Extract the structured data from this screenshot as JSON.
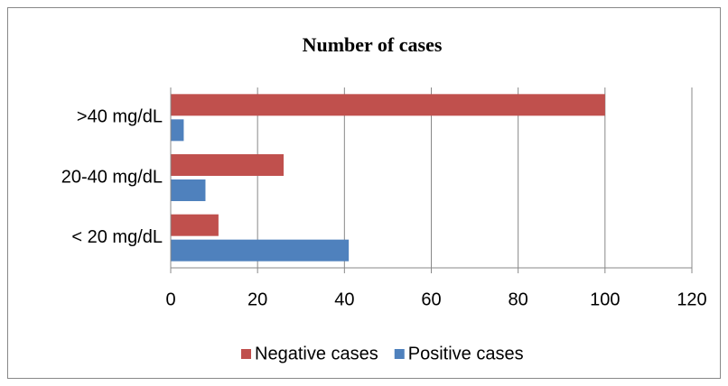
{
  "chart_data": {
    "type": "bar",
    "orientation": "horizontal",
    "title": "Number of cases",
    "categories": [
      ">40 mg/dL",
      "20-40 mg/dL",
      "< 20 mg/dL"
    ],
    "series": [
      {
        "name": "Negative cases",
        "color": "#c0504d",
        "values": [
          100,
          26,
          11
        ]
      },
      {
        "name": "Positive cases",
        "color": "#4f81bd",
        "values": [
          3,
          8,
          41
        ]
      }
    ],
    "xlim": [
      0,
      120
    ],
    "xticks": [
      0,
      20,
      40,
      60,
      80,
      100,
      120
    ],
    "grid": true,
    "legend": "bottom"
  }
}
